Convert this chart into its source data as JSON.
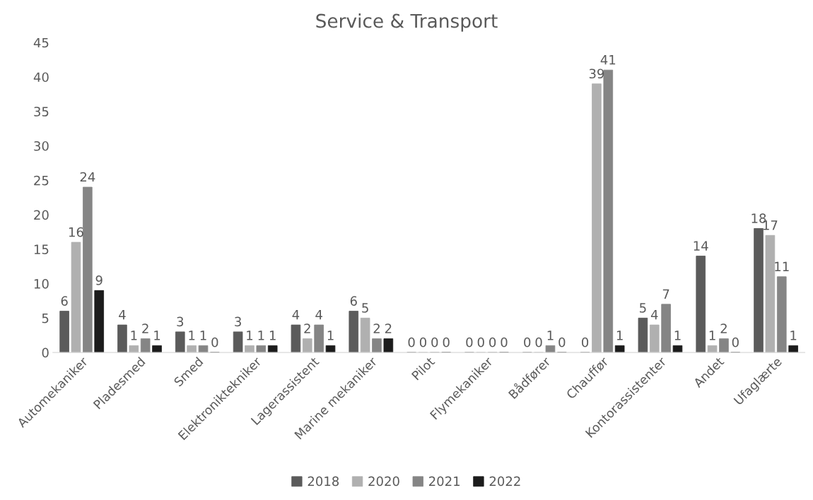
{
  "chart_data": {
    "type": "bar",
    "title": "Service & Transport",
    "categories": [
      "Automekaniker",
      "Pladesmed",
      "Smed",
      "Elektroniktekniker",
      "Lagerassistent",
      "Marine mekaniker",
      "Pilot",
      "Flymekaniker",
      "Bådfører",
      "Chauffør",
      "Kontorassistenter",
      "Andet",
      "Ufaglærte"
    ],
    "series": [
      {
        "name": "2018",
        "color": "#5b5b5b",
        "values": [
          6,
          4,
          3,
          3,
          4,
          6,
          0,
          0,
          0,
          0,
          5,
          14,
          18
        ]
      },
      {
        "name": "2020",
        "color": "#b0b0b0",
        "values": [
          16,
          1,
          1,
          1,
          2,
          5,
          0,
          0,
          0,
          39,
          4,
          1,
          17
        ]
      },
      {
        "name": "2021",
        "color": "#858585",
        "values": [
          24,
          2,
          1,
          1,
          4,
          2,
          0,
          0,
          1,
          41,
          7,
          2,
          11
        ]
      },
      {
        "name": "2022",
        "color": "#1c1c1c",
        "values": [
          9,
          1,
          0,
          1,
          1,
          2,
          0,
          0,
          0,
          1,
          1,
          0,
          1
        ]
      }
    ],
    "ylim": [
      0,
      45
    ],
    "yticks": [
      0,
      5,
      10,
      15,
      20,
      25,
      30,
      35,
      40,
      45
    ],
    "grid": false,
    "legend": "bottom",
    "data_labels": true
  }
}
